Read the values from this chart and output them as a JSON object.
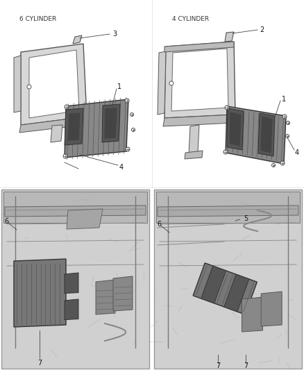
{
  "bg": "#ffffff",
  "fig_width": 4.38,
  "fig_height": 5.33,
  "dpi": 100,
  "top_left_label": "6 CYLINDER",
  "top_right_label": "4 CYLINDER",
  "label_fontsize": 6.5,
  "ann_fontsize": 7,
  "line_color": "#000000",
  "gray_light": "#e8e8e8",
  "gray_med": "#bbbbbb",
  "gray_dark": "#777777",
  "photo_bg": "#c8c8c8"
}
